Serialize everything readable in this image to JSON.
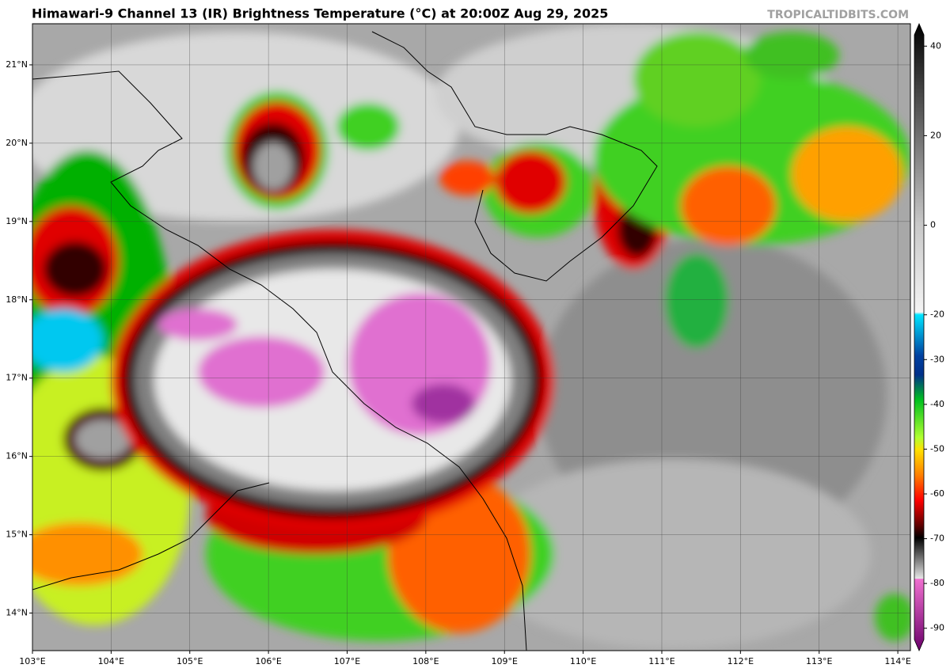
{
  "map": {
    "title": "Himawari-9 Channel 13 (IR) Brightness Temperature (°C) at 20:00Z Aug 29, 2025",
    "source": "TROPICALTIDBITS.COM",
    "xlim": [
      103,
      114.16
    ],
    "ylim": [
      13.52,
      21.525
    ],
    "lon_ticks": [
      {
        "value": 103,
        "label": "103°E"
      },
      {
        "value": 104,
        "label": "104°E"
      },
      {
        "value": 105,
        "label": "105°E"
      },
      {
        "value": 106,
        "label": "106°E"
      },
      {
        "value": 107,
        "label": "107°E"
      },
      {
        "value": 108,
        "label": "108°E"
      },
      {
        "value": 109,
        "label": "109°E"
      },
      {
        "value": 110,
        "label": "110°E"
      },
      {
        "value": 111,
        "label": "111°E"
      },
      {
        "value": 112,
        "label": "112°E"
      },
      {
        "value": 113,
        "label": "113°E"
      },
      {
        "value": 114,
        "label": "114°E"
      }
    ],
    "lat_ticks": [
      {
        "value": 14,
        "label": "14°N"
      },
      {
        "value": 15,
        "label": "15°N"
      },
      {
        "value": 16,
        "label": "16°N"
      },
      {
        "value": 17,
        "label": "17°N"
      },
      {
        "value": 18,
        "label": "18°N"
      },
      {
        "value": 19,
        "label": "19°N"
      },
      {
        "value": 20,
        "label": "20°N"
      },
      {
        "value": 21,
        "label": "21°N"
      }
    ],
    "colorbar": {
      "lim": [
        -95,
        45
      ],
      "ticks": [
        40,
        20,
        0,
        -20,
        -30,
        -40,
        -50,
        -60,
        -70,
        -80,
        -90
      ]
    }
  }
}
